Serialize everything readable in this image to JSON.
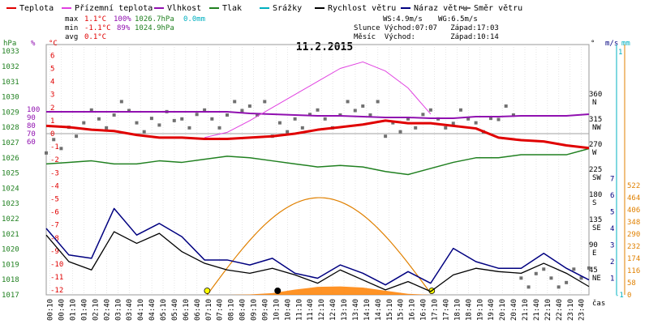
{
  "chart_data": {
    "type": "line",
    "title": "11.2.2015",
    "legend": [
      {
        "label": "Teplota",
        "color": "#e00000"
      },
      {
        "label": "Přízemní teplota",
        "color": "#e040e0"
      },
      {
        "label": "Vlhkost",
        "color": "#9010b0"
      },
      {
        "label": "Tlak",
        "color": "#208020"
      },
      {
        "label": "Srážky",
        "color": "#00b0c0"
      },
      {
        "label": "Rychlost větru",
        "color": "#000000"
      },
      {
        "label": "Náraz větru",
        "color": "#000080"
      },
      {
        "label": "Směr větru",
        "color": "#707070"
      }
    ],
    "stats": {
      "max_label": "max",
      "min_label": "min",
      "avg_label": "avg",
      "max_temp": "1.1°C",
      "max_hum": "100%",
      "max_press": "1026.7hPa",
      "max_rain": "0.0mm",
      "min_temp": "-1.1°C",
      "min_hum": "89%",
      "min_press": "1024.9hPa",
      "avg_temp": "0.1°C",
      "ws": "WS:4.9m/s",
      "wg": "WG:6.5m/s",
      "sun": "Slunce Východ:07:07   Západ:17:03",
      "moon": "Měsíc  Východ:        Západ:10:14"
    },
    "axes": {
      "hpa_unit": "hPa",
      "pct_unit": "%",
      "c_unit": "°C",
      "deg_unit": "°",
      "ms_unit": "m/s",
      "mm_unit": "mm",
      "wm_unit": "W/m²",
      "time_unit": "čas",
      "hpa_ticks": [
        1033,
        1032,
        1031,
        1030,
        1029,
        1028,
        1027,
        1026,
        1025,
        1024,
        1023,
        1022,
        1021,
        1020,
        1019,
        1018,
        1017
      ],
      "pct_ticks": [
        100,
        90,
        80,
        70,
        60
      ],
      "c_ticks": [
        6,
        5,
        4,
        3,
        2,
        1,
        0,
        -1,
        -2,
        -3,
        -4,
        -5,
        -6,
        -7,
        -8,
        -9,
        -10,
        -11,
        -12
      ],
      "dir_ticks": [
        "360\nN",
        "315\nNW",
        "270\nW",
        "225\nSW",
        "180\nS",
        "135\nSE",
        "90\nE",
        "45\nNE"
      ],
      "ms_ticks": [
        7,
        6,
        5,
        4,
        3,
        2,
        1
      ],
      "mm_ticks": [
        "1",
        "-1"
      ],
      "wm_ticks": [
        522,
        464,
        406,
        348,
        290,
        232,
        174,
        116,
        58,
        0
      ],
      "time_ticks": [
        "00:10",
        "00:40",
        "01:10",
        "01:40",
        "02:10",
        "02:40",
        "03:10",
        "03:40",
        "04:10",
        "04:40",
        "05:10",
        "05:40",
        "06:10",
        "06:40",
        "07:10",
        "07:40",
        "08:10",
        "08:40",
        "09:10",
        "09:40",
        "10:10",
        "10:40",
        "11:10",
        "11:40",
        "12:10",
        "12:40",
        "13:10",
        "13:40",
        "14:10",
        "14:40",
        "15:10",
        "15:40",
        "16:10",
        "16:40",
        "17:10",
        "17:40",
        "18:10",
        "18:40",
        "19:10",
        "19:40",
        "20:10",
        "20:40",
        "21:10",
        "21:40",
        "22:10",
        "22:40",
        "23:10",
        "23:40"
      ]
    },
    "x_hours": [
      0,
      1,
      2,
      3,
      4,
      5,
      6,
      7,
      8,
      9,
      10,
      11,
      12,
      13,
      14,
      15,
      16,
      17,
      18,
      19,
      20,
      21,
      22,
      23,
      24
    ],
    "series": [
      {
        "name": "Teplota",
        "unit": "°C",
        "values": [
          0.6,
          0.5,
          0.3,
          0.2,
          -0.1,
          -0.3,
          -0.3,
          -0.4,
          -0.4,
          -0.3,
          -0.2,
          0.0,
          0.3,
          0.5,
          0.7,
          1.0,
          0.8,
          0.8,
          0.6,
          0.4,
          -0.3,
          -0.5,
          -0.6,
          -0.9,
          -1.1
        ]
      },
      {
        "name": "Přízemní teplota",
        "unit": "°C",
        "values": [
          null,
          null,
          null,
          null,
          null,
          null,
          null,
          -0.3,
          0.1,
          1.0,
          2.0,
          3.0,
          4.0,
          5.0,
          5.5,
          4.8,
          3.5,
          1.5,
          null,
          null,
          null,
          null,
          null,
          null,
          null
        ]
      },
      {
        "name": "Vlhkost",
        "unit": "%",
        "values": [
          97,
          97,
          97,
          97,
          97,
          97,
          97,
          97,
          97,
          95,
          94,
          93,
          92,
          92,
          91,
          90,
          90,
          89,
          89,
          91,
          91,
          92,
          92,
          92,
          94
        ]
      },
      {
        "name": "Tlak",
        "unit": "hPa",
        "values": [
          1025.6,
          1025.7,
          1025.8,
          1025.6,
          1025.6,
          1025.8,
          1025.7,
          1025.9,
          1026.1,
          1026.0,
          1025.8,
          1025.6,
          1025.4,
          1025.5,
          1025.4,
          1025.1,
          1024.9,
          1025.3,
          1025.7,
          1026.0,
          1026.0,
          1026.2,
          1026.2,
          1026.2,
          1026.6
        ]
      },
      {
        "name": "Rychlost větru",
        "unit": "m/s",
        "values": [
          3.6,
          2.0,
          1.5,
          3.8,
          3.1,
          3.7,
          2.6,
          1.9,
          1.5,
          1.3,
          1.6,
          1.2,
          0.7,
          1.5,
          0.9,
          0.3,
          0.8,
          0.2,
          1.2,
          1.6,
          1.4,
          1.3,
          1.9,
          1.3,
          0.5
        ]
      },
      {
        "name": "Náraz větru",
        "unit": "m/s",
        "values": [
          4.0,
          2.4,
          2.2,
          5.2,
          3.6,
          4.3,
          3.5,
          2.1,
          2.1,
          1.8,
          2.2,
          1.3,
          1.0,
          1.8,
          1.3,
          0.6,
          1.4,
          0.7,
          2.8,
          2.0,
          1.6,
          1.6,
          2.5,
          1.6,
          0.9
        ]
      },
      {
        "name": "Směr větru",
        "unit": "°",
        "values": [
          270,
          300,
          315,
          330,
          300,
          320,
          315,
          315,
          330,
          330,
          300,
          315,
          315,
          330,
          330,
          300,
          315,
          315,
          315,
          300,
          330,
          30,
          30,
          30,
          40
        ]
      }
    ],
    "sun_curve": {
      "rise": "07:07",
      "set": "17:03",
      "peak_wm": 464
    },
    "ground_rain_fill_wm": [
      0,
      0,
      0,
      0,
      0,
      0,
      0,
      0,
      0,
      2,
      8,
      25,
      38,
      40,
      35,
      20,
      5,
      0,
      0,
      0,
      0,
      0,
      0,
      0,
      0
    ],
    "colors": {
      "grid": "#cccccc",
      "zero": "#a0a0a0",
      "sun": "#e08000",
      "axis_hpa": "#208020",
      "axis_pct": "#9010b0",
      "axis_c": "#e00000",
      "axis_ms": "#000080",
      "axis_mm": "#00b0c0",
      "axis_wm": "#e08000"
    }
  }
}
